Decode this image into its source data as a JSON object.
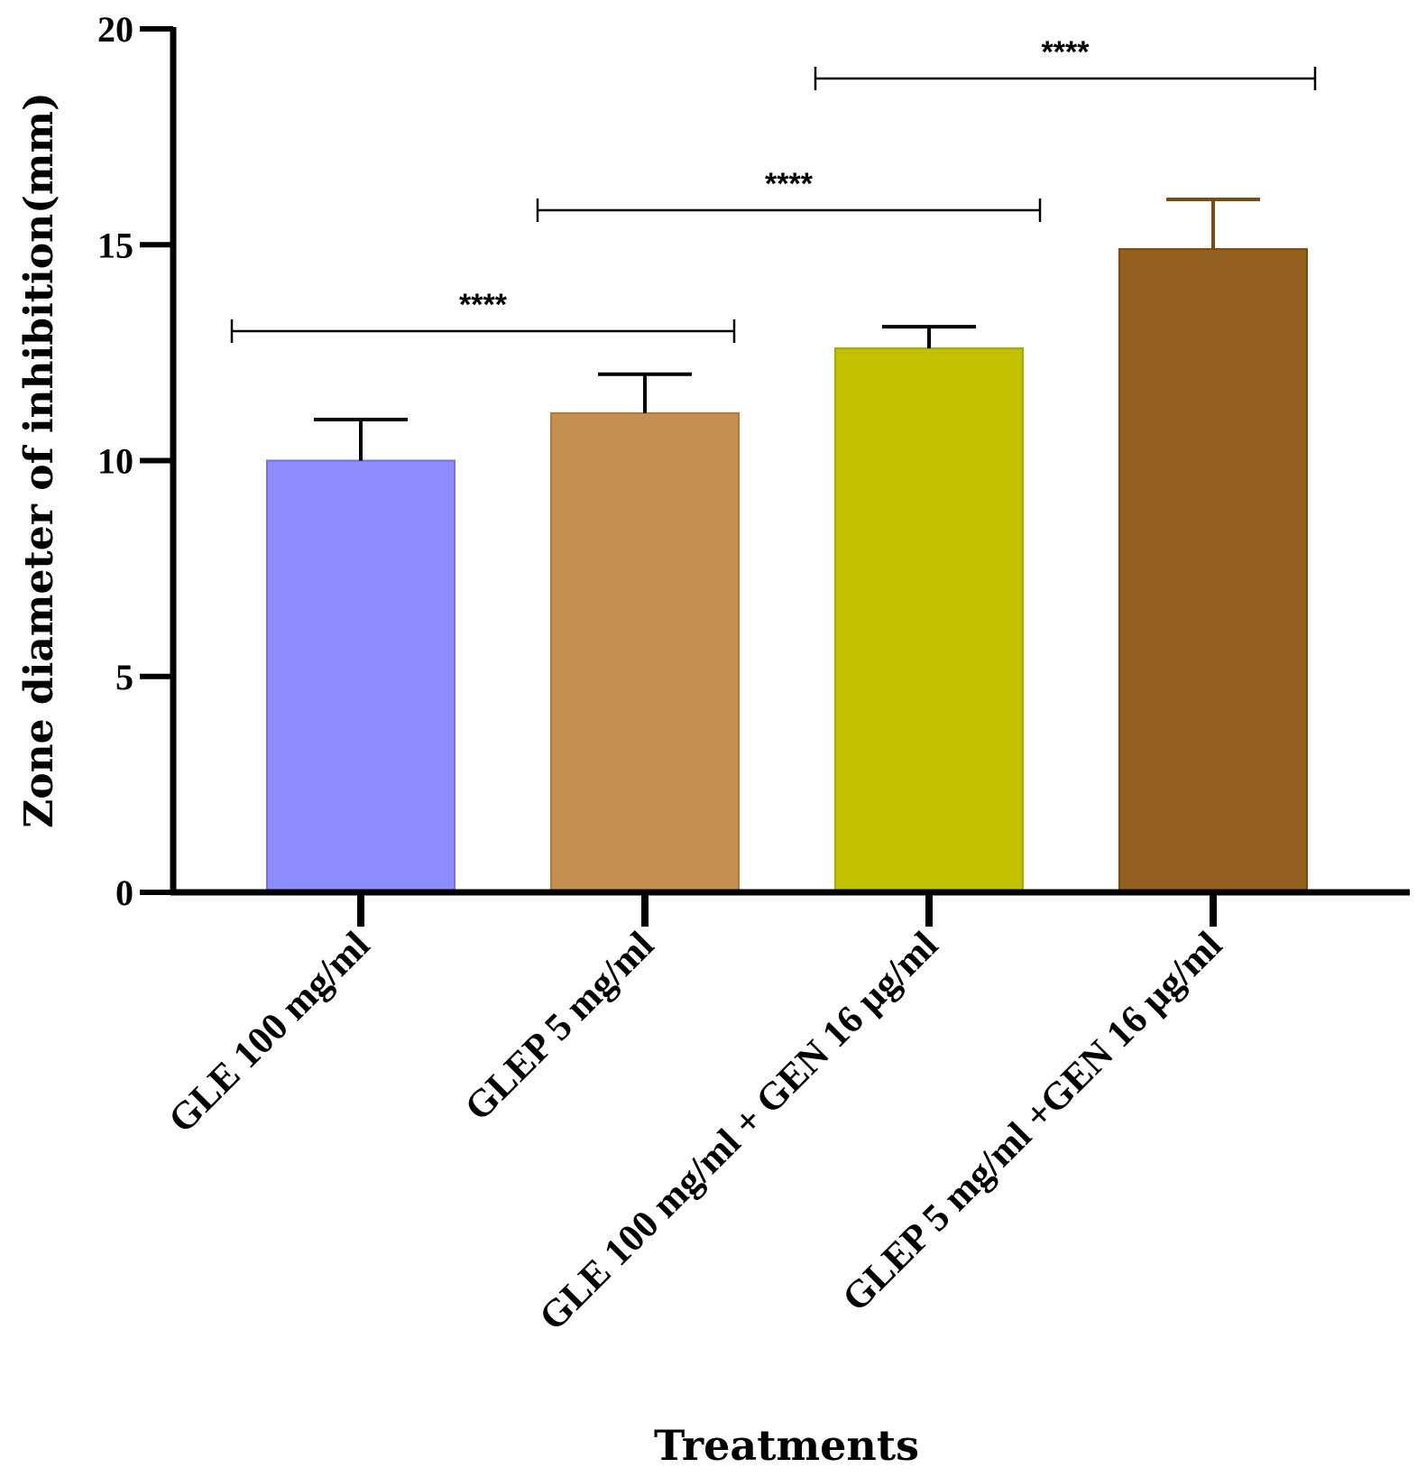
{
  "chart_data": {
    "type": "bar",
    "title": "",
    "xlabel": "Treatments",
    "ylabel": "Zone diameter of inhibition(mm)",
    "ylim": [
      0,
      20
    ],
    "yticks": [
      0,
      5,
      10,
      15,
      20
    ],
    "categories": [
      "GLE 100 mg/ml",
      "GLEP 5 mg/ml",
      "GLE 100 mg/ml + GEN 16 µg/ml",
      "GLEP 5 mg/ml +GEN 16 µg/ml"
    ],
    "values": [
      10.0,
      11.1,
      12.6,
      14.9
    ],
    "errors": [
      0.95,
      0.9,
      0.5,
      1.15
    ],
    "colors": [
      "#8c8cff",
      "#c4904f",
      "#c1c100",
      "#946020"
    ],
    "edge_colors": [
      "#7070e8",
      "#b07a3a",
      "#a8a800",
      "#7a4c14"
    ],
    "significance": [
      {
        "from": 0,
        "to": 1,
        "label": "****"
      },
      {
        "from": 1,
        "to": 2,
        "label": "****"
      },
      {
        "from": 2,
        "to": 3,
        "label": "****"
      }
    ],
    "grid": false,
    "legend": "none"
  }
}
